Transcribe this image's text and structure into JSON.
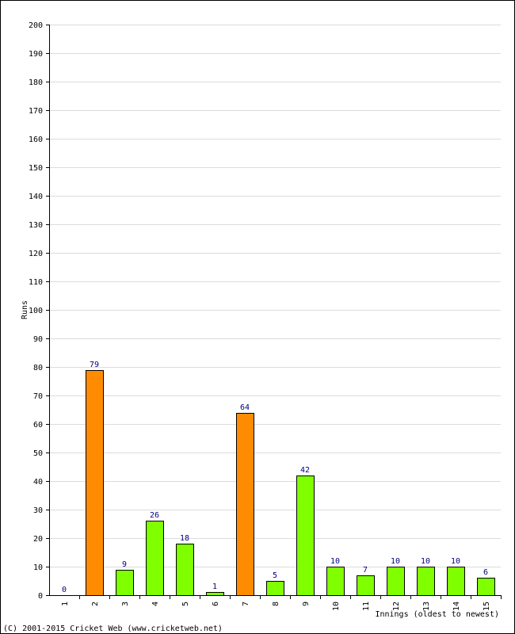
{
  "chart_data": {
    "type": "bar",
    "categories": [
      "1",
      "2",
      "3",
      "4",
      "5",
      "6",
      "7",
      "8",
      "9",
      "10",
      "11",
      "12",
      "13",
      "14",
      "15"
    ],
    "values": [
      0,
      79,
      9,
      26,
      18,
      1,
      64,
      5,
      42,
      10,
      7,
      10,
      10,
      10,
      6
    ],
    "labels": [
      "0",
      "79",
      "9",
      "26",
      "18",
      "1",
      "64",
      "5",
      "42",
      "10",
      "7",
      "10",
      "10",
      "10",
      "6"
    ],
    "highlight": [
      false,
      true,
      false,
      false,
      false,
      false,
      true,
      false,
      false,
      false,
      false,
      false,
      false,
      false,
      false
    ],
    "ylabel": "Runs",
    "xlabel": "Innings (oldest to newest)",
    "ylim": [
      0,
      200
    ],
    "yticks": [
      0,
      10,
      20,
      30,
      40,
      50,
      60,
      70,
      80,
      90,
      100,
      110,
      120,
      130,
      140,
      150,
      160,
      170,
      180,
      190,
      200
    ],
    "grid": true,
    "colors": {
      "normal": "#80ff00",
      "highlight": "#ff8c00",
      "value_label": "#000080"
    }
  },
  "footer": {
    "copyright": "(C) 2001-2015 Cricket Web (www.cricketweb.net)"
  }
}
